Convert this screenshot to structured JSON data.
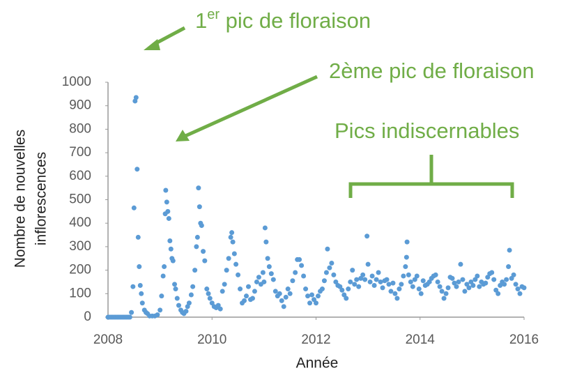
{
  "chart_data": {
    "type": "scatter",
    "xlabel": "Année",
    "ylabel": [
      "Nombre de nouvelles",
      "inflorescences"
    ],
    "annotations": [
      {
        "base": "1",
        "sup": "er",
        "rest": " pic de floraison"
      },
      {
        "text": "2ème pic de floraison"
      },
      {
        "text": "Pics indiscernables"
      }
    ],
    "color": "#5b9bd5",
    "annotation_color": "#70ad47",
    "xlim": [
      2008,
      2016
    ],
    "xticks": [
      2008,
      2010,
      2012,
      2014,
      2016
    ],
    "ylim": [
      0,
      1000
    ],
    "yticks": [
      0,
      100,
      200,
      300,
      400,
      500,
      600,
      700,
      800,
      900,
      1000
    ],
    "grid": false,
    "x": [
      2008.0,
      2008.03,
      2008.06,
      2008.09,
      2008.12,
      2008.15,
      2008.18,
      2008.21,
      2008.24,
      2008.27,
      2008.3,
      2008.33,
      2008.36,
      2008.39,
      2008.42,
      2008.45,
      2008.48,
      2008.5,
      2008.52,
      2008.54,
      2008.56,
      2008.58,
      2008.6,
      2008.62,
      2008.64,
      2008.66,
      2008.7,
      2008.73,
      2008.76,
      2008.8,
      2008.85,
      2008.9,
      2008.95,
      2009.0,
      2009.03,
      2009.06,
      2009.08,
      2009.1,
      2009.11,
      2009.13,
      2009.15,
      2009.17,
      2009.19,
      2009.21,
      2009.23,
      2009.25,
      2009.28,
      2009.3,
      2009.33,
      2009.36,
      2009.4,
      2009.43,
      2009.46,
      2009.5,
      2009.53,
      2009.56,
      2009.6,
      2009.63,
      2009.67,
      2009.7,
      2009.72,
      2009.74,
      2009.76,
      2009.78,
      2009.8,
      2009.83,
      2009.86,
      2009.9,
      2009.93,
      2009.96,
      2010.0,
      2010.04,
      2010.08,
      2010.12,
      2010.16,
      2010.2,
      2010.24,
      2010.28,
      2010.32,
      2010.36,
      2010.38,
      2010.4,
      2010.43,
      2010.46,
      2010.5,
      2010.54,
      2010.58,
      2010.62,
      2010.66,
      2010.7,
      2010.74,
      2010.78,
      2010.82,
      2010.86,
      2010.9,
      2010.94,
      2010.98,
      2011.0,
      2011.02,
      2011.04,
      2011.07,
      2011.1,
      2011.14,
      2011.18,
      2011.22,
      2011.26,
      2011.3,
      2011.34,
      2011.38,
      2011.42,
      2011.46,
      2011.5,
      2011.55,
      2011.6,
      2011.64,
      2011.68,
      2011.72,
      2011.76,
      2011.8,
      2011.84,
      2011.88,
      2011.92,
      2011.96,
      2012.0,
      2012.04,
      2012.08,
      2012.12,
      2012.16,
      2012.2,
      2012.22,
      2012.26,
      2012.3,
      2012.34,
      2012.38,
      2012.42,
      2012.46,
      2012.5,
      2012.54,
      2012.58,
      2012.62,
      2012.66,
      2012.7,
      2012.74,
      2012.78,
      2012.82,
      2012.86,
      2012.9,
      2012.94,
      2012.98,
      2013.0,
      2013.04,
      2013.08,
      2013.12,
      2013.16,
      2013.2,
      2013.24,
      2013.28,
      2013.32,
      2013.36,
      2013.4,
      2013.44,
      2013.48,
      2013.52,
      2013.56,
      2013.6,
      2013.64,
      2013.68,
      2013.72,
      2013.74,
      2013.75,
      2013.78,
      2013.82,
      2013.86,
      2013.9,
      2013.94,
      2013.98,
      2014.02,
      2014.06,
      2014.1,
      2014.14,
      2014.18,
      2014.22,
      2014.26,
      2014.3,
      2014.34,
      2014.38,
      2014.42,
      2014.46,
      2014.5,
      2014.54,
      2014.58,
      2014.62,
      2014.66,
      2014.7,
      2014.74,
      2014.78,
      2014.82,
      2014.86,
      2014.9,
      2014.94,
      2014.98,
      2015.02,
      2015.06,
      2015.1,
      2015.14,
      2015.18,
      2015.22,
      2015.26,
      2015.3,
      2015.34,
      2015.38,
      2015.42,
      2015.46,
      2015.5,
      2015.54,
      2015.58,
      2015.62,
      2015.66,
      2015.7,
      2015.72,
      2015.76,
      2015.8,
      2015.84,
      2015.88,
      2015.92,
      2015.96,
      2016.0
    ],
    "values": [
      0,
      0,
      0,
      0,
      0,
      0,
      0,
      0,
      0,
      0,
      0,
      0,
      0,
      0,
      0,
      20,
      130,
      465,
      920,
      935,
      630,
      340,
      215,
      135,
      100,
      60,
      30,
      20,
      15,
      5,
      5,
      5,
      10,
      30,
      90,
      175,
      215,
      440,
      540,
      490,
      450,
      420,
      325,
      290,
      250,
      240,
      140,
      120,
      80,
      50,
      30,
      20,
      15,
      25,
      45,
      60,
      95,
      130,
      200,
      300,
      340,
      550,
      470,
      400,
      390,
      280,
      240,
      120,
      100,
      80,
      60,
      45,
      40,
      50,
      35,
      110,
      140,
      200,
      250,
      340,
      360,
      320,
      270,
      225,
      180,
      120,
      60,
      70,
      90,
      130,
      75,
      80,
      110,
      150,
      170,
      140,
      190,
      150,
      380,
      320,
      250,
      215,
      185,
      160,
      110,
      90,
      100,
      70,
      45,
      85,
      120,
      100,
      155,
      190,
      245,
      245,
      220,
      175,
      120,
      90,
      60,
      95,
      75,
      60,
      90,
      110,
      120,
      155,
      190,
      290,
      210,
      230,
      180,
      150,
      135,
      130,
      115,
      95,
      80,
      120,
      150,
      200,
      140,
      160,
      130,
      165,
      180,
      160,
      345,
      225,
      150,
      175,
      135,
      160,
      190,
      150,
      125,
      155,
      160,
      140,
      110,
      145,
      100,
      80,
      120,
      140,
      175,
      215,
      255,
      320,
      180,
      150,
      130,
      160,
      175,
      120,
      100,
      155,
      135,
      140,
      150,
      165,
      175,
      180,
      150,
      130,
      110,
      80,
      100,
      125,
      170,
      165,
      145,
      130,
      150,
      225,
      160,
      110,
      140,
      125,
      150,
      135,
      160,
      175,
      130,
      150,
      140,
      145,
      170,
      185,
      190,
      160,
      115,
      100,
      135,
      150,
      140,
      160,
      215,
      285,
      165,
      180,
      140,
      120,
      100,
      130,
      125
    ]
  }
}
